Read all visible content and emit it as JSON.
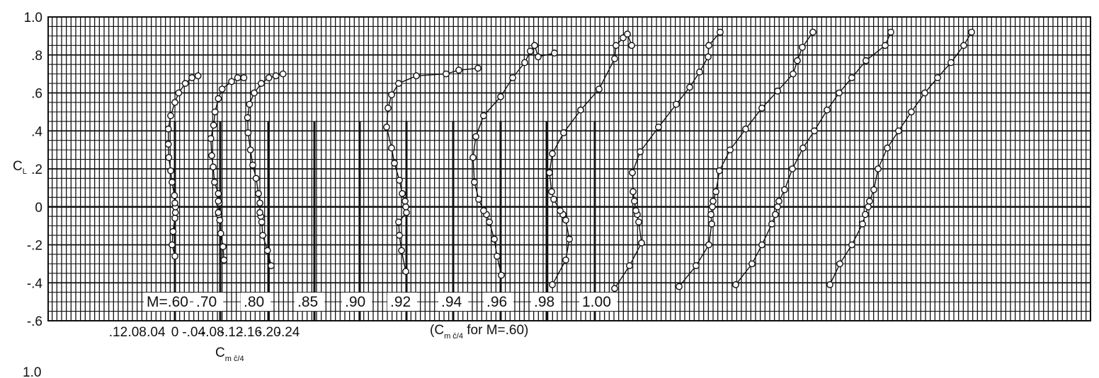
{
  "chart_data": {
    "type": "line",
    "ylabel": "C",
    "ylabel_sub": "L",
    "xlabel": "C",
    "xlabel_sub": "m c̄/4",
    "x_note_prefix": "(C",
    "x_note_sub": "m c̄/4",
    "x_note_suffix": " for M=.60)",
    "bottom_corner_label": "1.0",
    "xlim": [
      0.12,
      -0.62
    ],
    "ylim": [
      -0.6,
      1.0
    ],
    "grid": true,
    "y_ticks": [
      {
        "value": 1.0,
        "label": "1.0"
      },
      {
        "value": 0.8,
        "label": ".8"
      },
      {
        "value": 0.6,
        "label": ".6"
      },
      {
        "value": 0.4,
        "label": ".4"
      },
      {
        "value": 0.2,
        "label": ".2"
      },
      {
        "value": 0.0,
        "label": "0"
      },
      {
        "value": -0.2,
        "label": "-.2"
      },
      {
        "value": -0.4,
        "label": "-.4"
      },
      {
        "value": -0.6,
        "label": "-.6"
      }
    ],
    "x_ticks": [
      {
        "value": 0.12,
        "label": ".12"
      },
      {
        "value": 0.08,
        "label": ".08"
      },
      {
        "value": 0.04,
        "label": ".04"
      },
      {
        "value": 0.0,
        "label": "0"
      },
      {
        "value": -0.04,
        "label": "-.04"
      },
      {
        "value": -0.08,
        "label": "-.08"
      },
      {
        "value": -0.12,
        "label": "-.12"
      },
      {
        "value": -0.16,
        "label": "-.16"
      },
      {
        "value": -0.2,
        "label": "-.20"
      },
      {
        "value": -0.24,
        "label": "-.24"
      }
    ],
    "series": [
      {
        "name": "M=.60",
        "zero_cm": 0.0,
        "points": [
          [
            0.0,
            -0.26
          ],
          [
            0.006,
            -0.2
          ],
          [
            0.004,
            -0.13
          ],
          [
            0.0,
            -0.06
          ],
          [
            -0.001,
            -0.03
          ],
          [
            -0.001,
            0.0
          ],
          [
            0.0,
            0.02
          ],
          [
            0.001,
            0.06
          ],
          [
            0.006,
            0.13
          ],
          [
            0.009,
            0.19
          ],
          [
            0.013,
            0.26
          ],
          [
            0.014,
            0.33
          ],
          [
            0.014,
            0.41
          ],
          [
            0.009,
            0.48
          ],
          [
            0.0,
            0.55
          ],
          [
            -0.008,
            0.6
          ],
          [
            -0.022,
            0.65
          ],
          [
            -0.036,
            0.68
          ],
          [
            -0.049,
            0.69
          ]
        ]
      },
      {
        "name": ".70",
        "zero_cm": -0.096,
        "points": [
          [
            -0.104,
            -0.28
          ],
          [
            -0.102,
            -0.21
          ],
          [
            -0.097,
            -0.14
          ],
          [
            -0.095,
            -0.07
          ],
          [
            -0.093,
            -0.04
          ],
          [
            -0.092,
            -0.03
          ],
          [
            -0.094,
            0.02
          ],
          [
            -0.092,
            0.03
          ],
          [
            -0.092,
            0.07
          ],
          [
            -0.084,
            0.13
          ],
          [
            -0.081,
            0.21
          ],
          [
            -0.078,
            0.27
          ],
          [
            -0.076,
            0.36
          ],
          [
            -0.082,
            0.43
          ],
          [
            -0.085,
            0.5
          ],
          [
            -0.092,
            0.57
          ],
          [
            -0.1,
            0.62
          ],
          [
            -0.12,
            0.66
          ],
          [
            -0.133,
            0.68
          ],
          [
            -0.146,
            0.68
          ]
        ]
      },
      {
        "name": ".80",
        "zero_cm": -0.196,
        "points": [
          [
            -0.204,
            -0.31
          ],
          [
            -0.196,
            -0.23
          ],
          [
            -0.186,
            -0.15
          ],
          [
            -0.184,
            -0.08
          ],
          [
            -0.182,
            -0.05
          ],
          [
            -0.18,
            -0.03
          ],
          [
            -0.18,
            0.02
          ],
          [
            -0.177,
            0.07
          ],
          [
            -0.172,
            0.15
          ],
          [
            -0.165,
            0.22
          ],
          [
            -0.16,
            0.3
          ],
          [
            -0.155,
            0.39
          ],
          [
            -0.154,
            0.47
          ],
          [
            -0.158,
            0.54
          ],
          [
            -0.168,
            0.6
          ],
          [
            -0.183,
            0.65
          ],
          [
            -0.199,
            0.68
          ],
          [
            -0.214,
            0.69
          ],
          [
            -0.229,
            0.7
          ]
        ]
      }
    ]
  },
  "m_labels": [
    "M=.60",
    ".70",
    ".80",
    ".85",
    ".90",
    ".92",
    ".94",
    ".96",
    ".98",
    "1.00"
  ]
}
